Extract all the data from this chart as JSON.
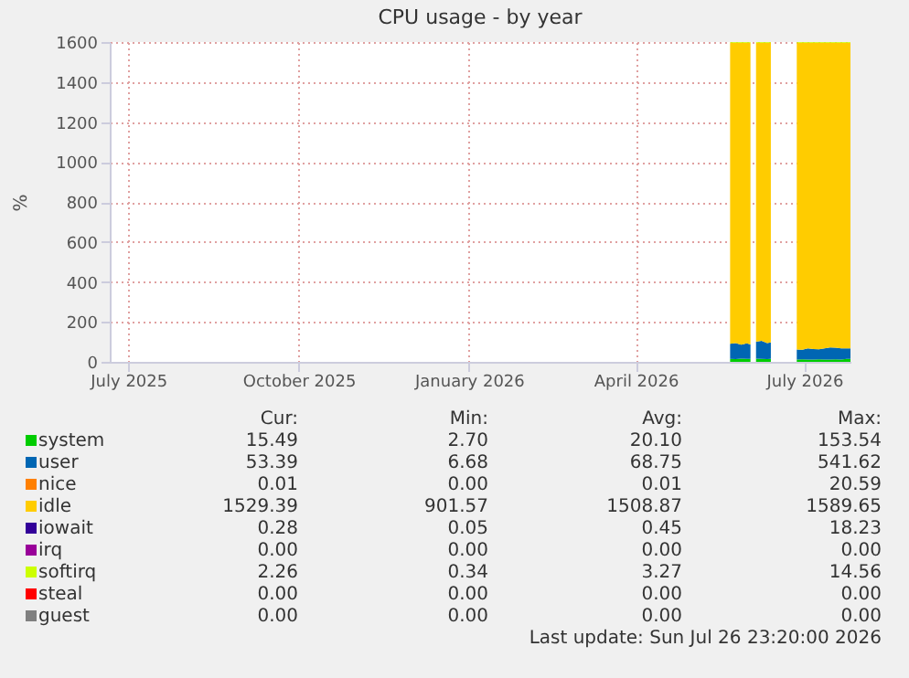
{
  "chart_data": {
    "type": "area",
    "title": "CPU usage - by year",
    "ylabel": "%",
    "stacked": true,
    "grid": true,
    "legend": "bottom",
    "xlim": [
      "2025-06-21",
      "2026-07-26"
    ],
    "xticks": [
      {
        "value": "2025-07-01",
        "label": "July 2025"
      },
      {
        "value": "2025-10-01",
        "label": "October 2025"
      },
      {
        "value": "2026-01-01",
        "label": "January 2026"
      },
      {
        "value": "2026-04-01",
        "label": "April 2026"
      },
      {
        "value": "2026-07-01",
        "label": "July 2026"
      }
    ],
    "ylim": [
      0,
      1600
    ],
    "yticks": [
      0,
      200,
      400,
      600,
      800,
      1000,
      1200,
      1400,
      1600
    ],
    "x": [
      "2026-05-22",
      "2026-05-25",
      "2026-05-28",
      "2026-05-31",
      "2026-06-02",
      "2026-06-03",
      "2026-06-05",
      "2026-06-08",
      "2026-06-11",
      "2026-06-13",
      "2026-06-20",
      "2026-06-27",
      "2026-06-30",
      "2026-07-03",
      "2026-07-06",
      "2026-07-09",
      "2026-07-12",
      "2026-07-15",
      "2026-07-18",
      "2026-07-21",
      "2026-07-24",
      "2026-07-26"
    ],
    "series": [
      {
        "name": "system",
        "color": "#00cc00",
        "values": [
          15,
          14,
          16,
          15,
          15,
          null,
          16,
          15,
          14,
          15,
          null,
          12,
          13,
          12,
          12,
          13,
          12,
          12,
          13,
          12,
          15,
          15
        ]
      },
      {
        "name": "user",
        "color": "#0066b3",
        "values": [
          75,
          80,
          70,
          78,
          72,
          null,
          85,
          90,
          80,
          82,
          null,
          50,
          48,
          55,
          52,
          50,
          55,
          60,
          58,
          55,
          53,
          53
        ]
      },
      {
        "name": "nice",
        "color": "#ff8000",
        "values": [
          null,
          null,
          null,
          null,
          null,
          null,
          null,
          null,
          null,
          null,
          null,
          null,
          null,
          null,
          null,
          null,
          null,
          null,
          null,
          null,
          null,
          null
        ]
      },
      {
        "name": "idle",
        "color": "#ffcc00",
        "values": [
          1507,
          1503,
          1511,
          1504,
          1510,
          null,
          1496,
          1492,
          1503,
          1500,
          null,
          1535,
          1536,
          1530,
          1533,
          1534,
          1530,
          1525,
          1526,
          1530,
          1529,
          1529
        ]
      },
      {
        "name": "iowait",
        "color": "#330099",
        "values": [
          null,
          null,
          null,
          null,
          null,
          null,
          null,
          null,
          null,
          null,
          null,
          null,
          null,
          null,
          null,
          null,
          null,
          null,
          null,
          null,
          null,
          null
        ]
      },
      {
        "name": "irq",
        "color": "#990099",
        "values": [
          null,
          null,
          null,
          null,
          null,
          null,
          null,
          null,
          null,
          null,
          null,
          null,
          null,
          null,
          null,
          null,
          null,
          null,
          null,
          null,
          null,
          null
        ]
      },
      {
        "name": "softirq",
        "color": "#ccff00",
        "values": [
          3,
          3,
          3,
          3,
          3,
          null,
          3,
          3,
          3,
          3,
          null,
          3,
          3,
          3,
          3,
          3,
          3,
          3,
          3,
          3,
          3,
          3
        ]
      },
      {
        "name": "steal",
        "color": "#ff0000",
        "values": [
          null,
          null,
          null,
          null,
          null,
          null,
          null,
          null,
          null,
          null,
          null,
          null,
          null,
          null,
          null,
          null,
          null,
          null,
          null,
          null,
          null,
          null
        ]
      },
      {
        "name": "guest",
        "color": "#808080",
        "values": [
          null,
          null,
          null,
          null,
          null,
          null,
          null,
          null,
          null,
          null,
          null,
          null,
          null,
          null,
          null,
          null,
          null,
          null,
          null,
          null,
          null,
          null
        ]
      }
    ],
    "annotations": [
      "Cur:",
      "Min:",
      "Avg:",
      "Max:",
      "15.49",
      "2.70",
      "20.10",
      "153.54",
      "53.39",
      "6.68",
      "68.75",
      "541.62",
      "0.01",
      "0.00",
      "0.01",
      "20.59",
      "1529.39",
      "901.57",
      "1508.87",
      "1589.65",
      "0.28",
      "0.05",
      "0.45",
      "18.23",
      "0.00",
      "0.00",
      "0.00",
      "0.00",
      "2.26",
      "0.34",
      "3.27",
      "14.56",
      "0.00",
      "0.00",
      "0.00",
      "0.00",
      "0.00",
      "0.00",
      "0.00",
      "0.00",
      "Last update: Sun Jul 26 23:20:00 2026"
    ]
  }
}
